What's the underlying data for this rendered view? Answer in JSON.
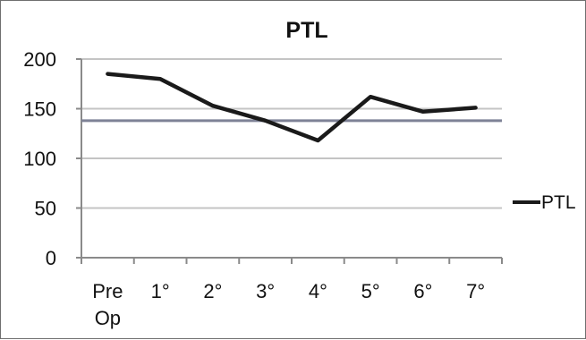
{
  "chart_data": {
    "type": "line",
    "title": "PTL",
    "categories": [
      "Pre Op",
      "1°",
      "2°",
      "3°",
      "4°",
      "5°",
      "6°",
      "7°"
    ],
    "series": [
      {
        "name": "PTL",
        "values": [
          185,
          180,
          153,
          138,
          118,
          162,
          147,
          151
        ],
        "color": "#1a1a1a"
      }
    ],
    "reference_line": {
      "value": 138,
      "color": "#7e8296"
    },
    "yticks": [
      0,
      50,
      100,
      150,
      200
    ],
    "ylim": [
      0,
      200
    ],
    "grid": true,
    "legend": "right"
  }
}
